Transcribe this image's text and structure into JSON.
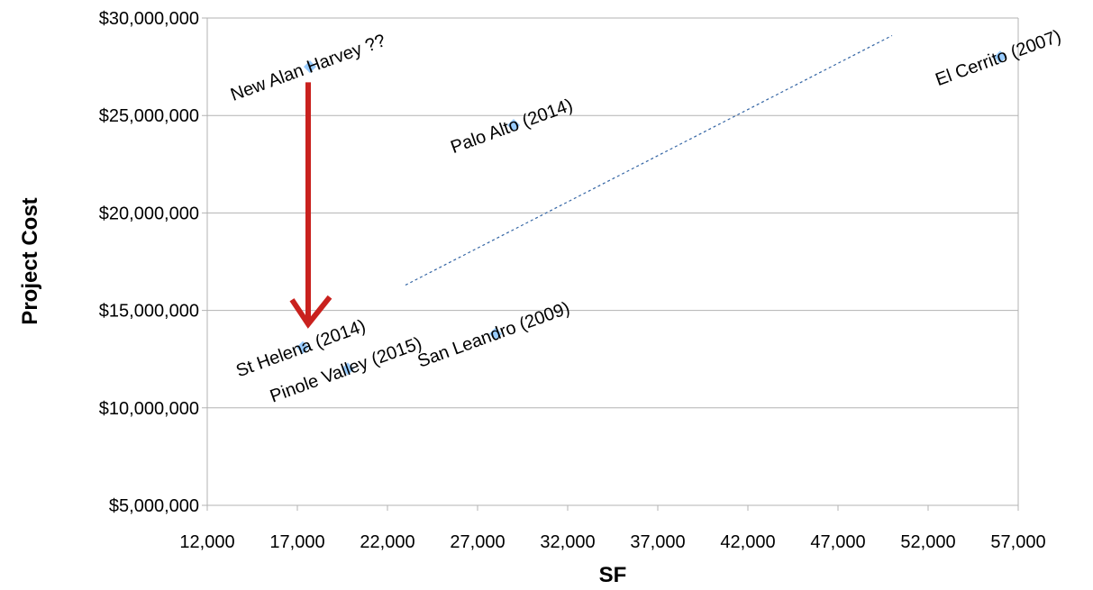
{
  "chart_data": {
    "type": "scatter",
    "title": "",
    "xlabel": "SF",
    "ylabel": "Project Cost",
    "xlim": [
      12000,
      57000
    ],
    "ylim": [
      5000000,
      30000000
    ],
    "x_ticks": [
      12000,
      17000,
      22000,
      27000,
      32000,
      37000,
      42000,
      47000,
      52000,
      57000
    ],
    "y_ticks": [
      5000000,
      10000000,
      15000000,
      20000000,
      25000000,
      30000000
    ],
    "x_tick_labels": [
      "12,000",
      "17,000",
      "22,000",
      "27,000",
      "32,000",
      "37,000",
      "42,000",
      "47,000",
      "52,000",
      "57,000"
    ],
    "y_tick_labels": [
      "$5,000,000",
      "$10,000,000",
      "$15,000,000",
      "$20,000,000",
      "$25,000,000",
      "$30,000,000"
    ],
    "grid": true,
    "legend": "none",
    "colors": {
      "point": "#99ccff",
      "trendline": "#3465a4",
      "arrow": "#c9211e",
      "grid": "#b3b3b3"
    },
    "points": [
      {
        "label": "New Alan Harvey ??",
        "x": 17700,
        "y": 27500000
      },
      {
        "label": "Palo Alto (2014)",
        "x": 29000,
        "y": 24500000
      },
      {
        "label": "El Cerrito (2007)",
        "x": 56000,
        "y": 28000000
      },
      {
        "label": "San Leandro (2009)",
        "x": 28000,
        "y": 13800000
      },
      {
        "label": "St Helena (2014)",
        "x": 17300,
        "y": 13100000
      },
      {
        "label": "Pinole Valley (2015)",
        "x": 19800,
        "y": 12000000
      }
    ],
    "trendline": {
      "style": "dashed",
      "x": [
        23000,
        50000
      ],
      "y": [
        16300000,
        29100000
      ]
    },
    "annotations": [
      {
        "type": "arrow",
        "from": {
          "x": 17600,
          "y": 26700000
        },
        "to": {
          "x": 17600,
          "y": 14300000
        }
      }
    ]
  }
}
